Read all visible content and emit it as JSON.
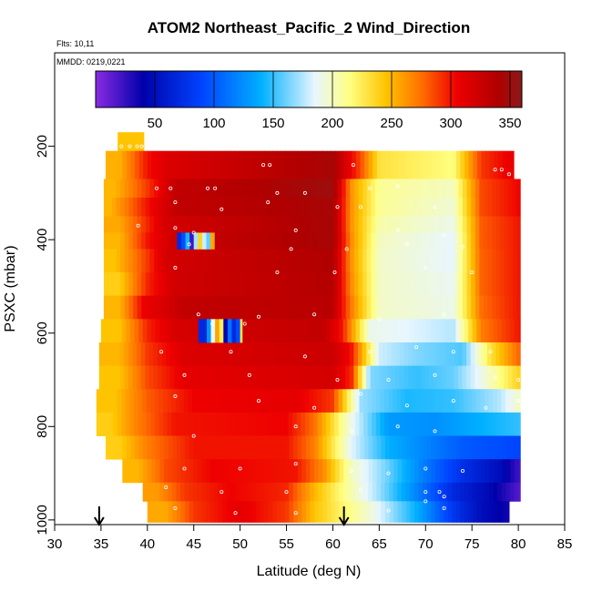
{
  "chart_data": {
    "type": "heatmap",
    "title": "ATOM2 Northeast_Pacific_2 Wind_Direction",
    "subtitle_flights": "Flts: 10,11",
    "subtitle_dates": "MMDD: 0219,0221",
    "xlabel": "Latitude (deg N)",
    "ylabel": "PSXC (mbar)",
    "xlim": [
      30,
      85
    ],
    "ylim": [
      1010,
      0
    ],
    "x_ticks": [
      30,
      35,
      40,
      45,
      50,
      55,
      60,
      65,
      70,
      75,
      80,
      85
    ],
    "y_ticks": [
      200,
      400,
      600,
      800,
      1000
    ],
    "colorbar": {
      "range": [
        0,
        360
      ],
      "ticks": [
        50,
        100,
        150,
        200,
        250,
        300,
        350
      ],
      "stops": [
        {
          "v": 0,
          "c": "#8a2be2"
        },
        {
          "v": 40,
          "c": "#0000aa"
        },
        {
          "v": 90,
          "c": "#0044ff"
        },
        {
          "v": 140,
          "c": "#00b0ff"
        },
        {
          "v": 185,
          "c": "#e8f6ff"
        },
        {
          "v": 215,
          "c": "#ffff80"
        },
        {
          "v": 245,
          "c": "#ffc400"
        },
        {
          "v": 275,
          "c": "#ff7000"
        },
        {
          "v": 305,
          "c": "#ee0000"
        },
        {
          "v": 340,
          "c": "#b00000"
        },
        {
          "v": 360,
          "c": "#8b1a1a"
        }
      ]
    },
    "arrows_lat": [
      34.8,
      61.2
    ],
    "rows": [
      {
        "p": [
          170,
          210
        ],
        "x0": 36.8,
        "x1": 39.6,
        "segs": [
          [
            39.6,
            245
          ]
        ]
      },
      {
        "p": [
          210,
          270
        ],
        "x0": 35.5,
        "x1": 79.5,
        "segs": [
          [
            37,
            252
          ],
          [
            40,
            300
          ],
          [
            42,
            315
          ],
          [
            60,
            345
          ],
          [
            63,
            285
          ],
          [
            65,
            230
          ],
          [
            73,
            215
          ],
          [
            76,
            290
          ],
          [
            79.5,
            310
          ]
        ]
      },
      {
        "p": [
          270,
          310
        ],
        "x0": 35.3,
        "x1": 80.2,
        "segs": [
          [
            36.5,
            250
          ],
          [
            40,
            290
          ],
          [
            43,
            330
          ],
          [
            60,
            350
          ],
          [
            62,
            262
          ],
          [
            65,
            210
          ],
          [
            73,
            200
          ],
          [
            76,
            285
          ],
          [
            80.2,
            305
          ]
        ]
      },
      {
        "p": [
          310,
          350
        ],
        "x0": 35.3,
        "x1": 80.2,
        "segs": [
          [
            36,
            250
          ],
          [
            40,
            300
          ],
          [
            43,
            330
          ],
          [
            60,
            345
          ],
          [
            62,
            262
          ],
          [
            65,
            210
          ],
          [
            73,
            195
          ],
          [
            76,
            285
          ],
          [
            80.2,
            305
          ]
        ]
      },
      {
        "p": [
          350,
          385
        ],
        "x0": 35.3,
        "x1": 80.2,
        "segs": [
          [
            37,
            255
          ],
          [
            40,
            295
          ],
          [
            42,
            320
          ],
          [
            60,
            345
          ],
          [
            62,
            262
          ],
          [
            65,
            205
          ],
          [
            73,
            190
          ],
          [
            76,
            280
          ],
          [
            80.2,
            300
          ]
        ]
      },
      {
        "p": [
          385,
          420
        ],
        "x0": 35.3,
        "x1": 80.2,
        "segs": [
          [
            37,
            250
          ],
          [
            40,
            300
          ],
          [
            43,
            325
          ],
          [
            60,
            345
          ],
          [
            62,
            265
          ],
          [
            65,
            200
          ],
          [
            73,
            185
          ],
          [
            76,
            280
          ],
          [
            80.2,
            300
          ]
        ]
      },
      {
        "p": [
          420,
          470
        ],
        "x0": 35.3,
        "x1": 80.2,
        "segs": [
          [
            36.5,
            245
          ],
          [
            40,
            290
          ],
          [
            42,
            320
          ],
          [
            60,
            340
          ],
          [
            62,
            262
          ],
          [
            65,
            198
          ],
          [
            73,
            185
          ],
          [
            76,
            278
          ],
          [
            80.2,
            300
          ]
        ]
      },
      {
        "p": [
          470,
          520
        ],
        "x0": 35.3,
        "x1": 80.2,
        "segs": [
          [
            37,
            240
          ],
          [
            40,
            295
          ],
          [
            43,
            322
          ],
          [
            60,
            338
          ],
          [
            62,
            265
          ],
          [
            65,
            198
          ],
          [
            73,
            188
          ],
          [
            76,
            278
          ],
          [
            80.2,
            300
          ]
        ]
      },
      {
        "p": [
          520,
          570
        ],
        "x0": 35.3,
        "x1": 80.2,
        "segs": [
          [
            37,
            250
          ],
          [
            39.5,
            305
          ],
          [
            44,
            330
          ],
          [
            60,
            335
          ],
          [
            62,
            270
          ],
          [
            65,
            198
          ],
          [
            73,
            190
          ],
          [
            76,
            275
          ],
          [
            80.2,
            300
          ]
        ]
      },
      {
        "p": [
          570,
          620
        ],
        "x0": 35,
        "x1": 80.2,
        "segs": [
          [
            37,
            245
          ],
          [
            40,
            295
          ],
          [
            43,
            318
          ],
          [
            59,
            330
          ],
          [
            61,
            300
          ],
          [
            64,
            190
          ],
          [
            68,
            185
          ],
          [
            73,
            175
          ],
          [
            76,
            270
          ],
          [
            80.2,
            300
          ]
        ]
      },
      {
        "p": [
          620,
          670
        ],
        "x0": 34.8,
        "x1": 80.2,
        "segs": [
          [
            37,
            250
          ],
          [
            40,
            290
          ],
          [
            44,
            315
          ],
          [
            60,
            325
          ],
          [
            62,
            300
          ],
          [
            65,
            180
          ],
          [
            69,
            165
          ],
          [
            74,
            155
          ],
          [
            77,
            230
          ],
          [
            80.2,
            280
          ]
        ]
      },
      {
        "p": [
          670,
          720
        ],
        "x0": 34.8,
        "x1": 80.2,
        "segs": [
          [
            37,
            245
          ],
          [
            40,
            285
          ],
          [
            44,
            310
          ],
          [
            60,
            320
          ],
          [
            62,
            295
          ],
          [
            64,
            165
          ],
          [
            69,
            150
          ],
          [
            73,
            160
          ],
          [
            76,
            190
          ],
          [
            80.2,
            240
          ]
        ]
      },
      {
        "p": [
          720,
          770
        ],
        "x0": 34.5,
        "x1": 80.2,
        "segs": [
          [
            36.5,
            245
          ],
          [
            40,
            280
          ],
          [
            45,
            305
          ],
          [
            56,
            310
          ],
          [
            60,
            290
          ],
          [
            63,
            170
          ],
          [
            68,
            145
          ],
          [
            73,
            150
          ],
          [
            78,
            175
          ],
          [
            80.2,
            200
          ]
        ]
      },
      {
        "p": [
          770,
          820
        ],
        "x0": 34.5,
        "x1": 80.2,
        "segs": [
          [
            36,
            240
          ],
          [
            39,
            270
          ],
          [
            43,
            300
          ],
          [
            55,
            305
          ],
          [
            58,
            275
          ],
          [
            62,
            190
          ],
          [
            66,
            130
          ],
          [
            71,
            125
          ],
          [
            76,
            140
          ],
          [
            80.2,
            150
          ]
        ]
      },
      {
        "p": [
          820,
          870
        ],
        "x0": 35.5,
        "x1": 80.2,
        "segs": [
          [
            37,
            240
          ],
          [
            40,
            270
          ],
          [
            45,
            300
          ],
          [
            55,
            300
          ],
          [
            58,
            270
          ],
          [
            62,
            185
          ],
          [
            66,
            140
          ],
          [
            70,
            120
          ],
          [
            74,
            100
          ],
          [
            80.2,
            90
          ]
        ]
      },
      {
        "p": [
          870,
          920
        ],
        "x0": 37.3,
        "x1": 80.2,
        "segs": [
          [
            39,
            250
          ],
          [
            42,
            285
          ],
          [
            47,
            305
          ],
          [
            56,
            300
          ],
          [
            59,
            265
          ],
          [
            62,
            200
          ],
          [
            66,
            160
          ],
          [
            70,
            115
          ],
          [
            74,
            75
          ],
          [
            78,
            50
          ],
          [
            80.2,
            20
          ]
        ]
      },
      {
        "p": [
          920,
          960
        ],
        "x0": 39.5,
        "x1": 80.2,
        "segs": [
          [
            41,
            260
          ],
          [
            44,
            290
          ],
          [
            49,
            305
          ],
          [
            55,
            295
          ],
          [
            58,
            250
          ],
          [
            61,
            215
          ],
          [
            65,
            170
          ],
          [
            69,
            120
          ],
          [
            73,
            70
          ],
          [
            77,
            45
          ],
          [
            80.2,
            15
          ]
        ]
      },
      {
        "p": [
          960,
          1005
        ],
        "x0": 40,
        "x1": 79,
        "segs": [
          [
            42,
            255
          ],
          [
            45,
            290
          ],
          [
            50,
            310
          ],
          [
            55,
            290
          ],
          [
            58,
            245
          ],
          [
            61,
            220
          ],
          [
            64,
            195
          ],
          [
            69,
            140
          ],
          [
            73,
            80
          ],
          [
            76,
            50
          ],
          [
            79,
            35
          ]
        ]
      }
    ],
    "patches": [
      {
        "p": [
          385,
          420
        ],
        "x0": 43.2,
        "x1": 47.2,
        "segs": [
          [
            43.7,
            70
          ],
          [
            44.3,
            150
          ],
          [
            44.8,
            15
          ],
          [
            45.3,
            200
          ],
          [
            45.8,
            250
          ],
          [
            46.4,
            120
          ],
          [
            47.2,
            300
          ]
        ]
      },
      {
        "p": [
          570,
          620
        ],
        "x0": 45.5,
        "x1": 50.2,
        "segs": [
          [
            46.2,
            70
          ],
          [
            46.8,
            150
          ],
          [
            47.3,
            220
          ],
          [
            47.8,
            300
          ],
          [
            48.4,
            40
          ],
          [
            49.0,
            130
          ],
          [
            49.6,
            20
          ],
          [
            50.2,
            270
          ]
        ]
      }
    ],
    "scatter_points": [
      [
        37.2,
        200
      ],
      [
        38.1,
        200
      ],
      [
        38.9,
        200
      ],
      [
        39.4,
        200
      ],
      [
        53.2,
        240
      ],
      [
        52.5,
        240
      ],
      [
        62.2,
        240
      ],
      [
        77.5,
        250
      ],
      [
        78.2,
        250
      ],
      [
        79.0,
        260
      ],
      [
        41,
        290
      ],
      [
        42.5,
        290
      ],
      [
        46.5,
        290
      ],
      [
        47.3,
        290
      ],
      [
        54,
        300
      ],
      [
        57,
        300
      ],
      [
        64,
        290
      ],
      [
        67,
        285
      ],
      [
        43,
        320
      ],
      [
        48,
        335
      ],
      [
        53,
        320
      ],
      [
        60.5,
        330
      ],
      [
        63,
        330
      ],
      [
        71,
        330
      ],
      [
        39,
        370
      ],
      [
        43,
        375
      ],
      [
        45,
        385
      ],
      [
        56,
        380
      ],
      [
        67,
        380
      ],
      [
        72,
        390
      ],
      [
        44.5,
        410
      ],
      [
        55.5,
        420
      ],
      [
        61.5,
        420
      ],
      [
        68,
        410
      ],
      [
        74,
        415
      ],
      [
        43,
        460
      ],
      [
        54,
        470
      ],
      [
        60.2,
        470
      ],
      [
        70,
        460
      ],
      [
        75,
        470
      ],
      [
        45.5,
        560
      ],
      [
        47,
        580
      ],
      [
        50.5,
        580
      ],
      [
        52,
        565
      ],
      [
        58,
        560
      ],
      [
        65,
        570
      ],
      [
        72,
        560
      ],
      [
        41.5,
        640
      ],
      [
        49,
        640
      ],
      [
        57,
        650
      ],
      [
        64,
        640
      ],
      [
        69,
        630
      ],
      [
        73,
        640
      ],
      [
        77,
        640
      ],
      [
        44,
        690
      ],
      [
        51,
        690
      ],
      [
        60.5,
        700
      ],
      [
        66,
        700
      ],
      [
        71,
        690
      ],
      [
        77.5,
        695
      ],
      [
        80,
        700
      ],
      [
        43,
        735
      ],
      [
        52,
        745
      ],
      [
        58,
        760
      ],
      [
        63,
        730
      ],
      [
        68,
        755
      ],
      [
        73,
        745
      ],
      [
        76.5,
        760
      ],
      [
        80,
        745
      ],
      [
        45,
        820
      ],
      [
        56,
        800
      ],
      [
        62,
        810
      ],
      [
        67,
        800
      ],
      [
        71,
        810
      ],
      [
        44,
        890
      ],
      [
        50,
        890
      ],
      [
        56,
        880
      ],
      [
        62,
        895
      ],
      [
        66,
        900
      ],
      [
        70,
        890
      ],
      [
        74,
        895
      ],
      [
        42,
        930
      ],
      [
        48,
        940
      ],
      [
        55,
        940
      ],
      [
        63,
        935
      ],
      [
        70,
        940
      ],
      [
        71.5,
        940
      ],
      [
        72,
        950
      ],
      [
        43,
        975
      ],
      [
        49.5,
        985
      ],
      [
        56,
        985
      ],
      [
        66,
        980
      ],
      [
        70,
        960
      ],
      [
        72,
        975
      ]
    ]
  }
}
